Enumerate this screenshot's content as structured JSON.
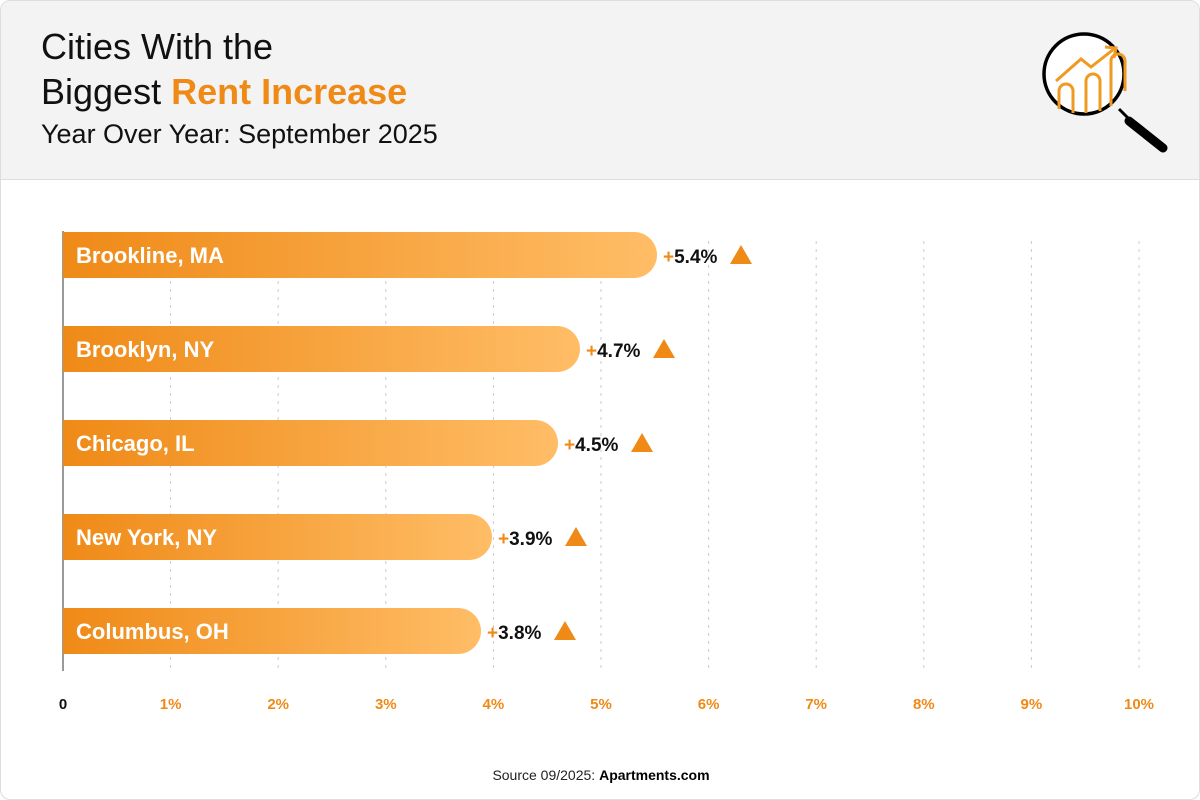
{
  "header": {
    "title_line1": "Cities With the",
    "title_line2_prefix": "Biggest ",
    "title_line2_highlight": "Rent Increase",
    "subtitle": "Year Over Year: September 2025",
    "icon": "magnifier-chart-icon"
  },
  "chart_data": {
    "type": "bar",
    "orientation": "horizontal",
    "categories": [
      "Brookline, MA",
      "Brooklyn, NY",
      "Chicago, IL",
      "New York, NY",
      "Columbus, OH"
    ],
    "values": [
      5.4,
      4.7,
      4.5,
      3.9,
      3.8
    ],
    "data_labels": [
      "5.4%",
      "4.7%",
      "4.5%",
      "3.9%",
      "3.8%"
    ],
    "label_prefix": "+",
    "xlim": [
      0,
      10
    ],
    "x_ticks": [
      "0",
      "1%",
      "2%",
      "3%",
      "4%",
      "5%",
      "6%",
      "7%",
      "8%",
      "9%",
      "10%"
    ],
    "grid": true,
    "colors": {
      "bar_start": "#ef8a17",
      "bar_end": "#ffbd66",
      "accent": "#ef8a17"
    }
  },
  "footer": {
    "source_prefix": "Source 09/2025: ",
    "source_name": "Apartments.com"
  }
}
